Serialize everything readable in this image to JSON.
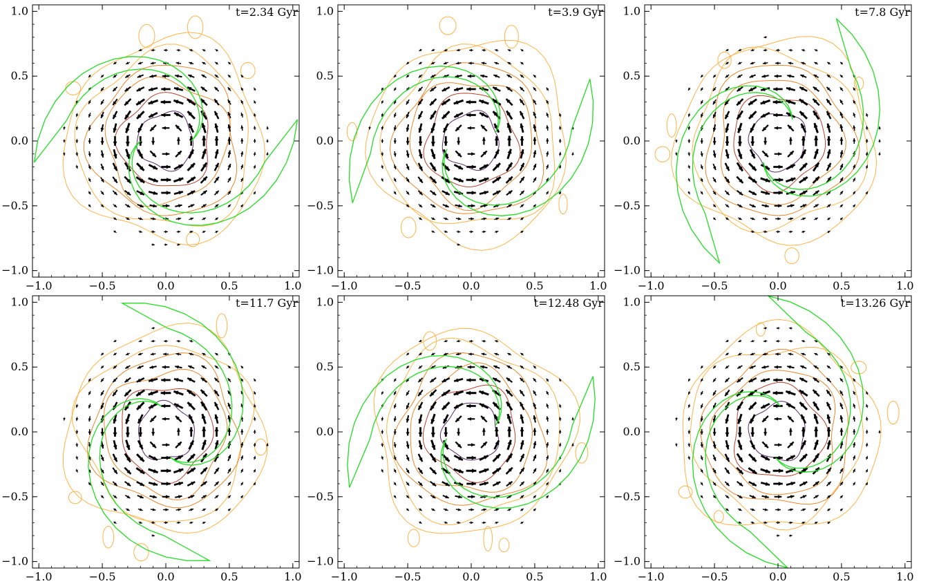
{
  "figure": {
    "panels": [
      {
        "time_label": "t=2.34 Gyr",
        "arm_rotation_deg": 0
      },
      {
        "time_label": "t=3.9 Gyr",
        "arm_rotation_deg": 18
      },
      {
        "time_label": "t=7.8 Gyr",
        "arm_rotation_deg": 55
      },
      {
        "time_label": "t=11.7 Gyr",
        "arm_rotation_deg": 100
      },
      {
        "time_label": "t=12.48 Gyr",
        "arm_rotation_deg": 15
      },
      {
        "time_label": "t=13.26 Gyr",
        "arm_rotation_deg": 85
      }
    ]
  },
  "chart_data": [
    {
      "type": "quiver",
      "title": "",
      "time_label": "t=2.34 Gyr",
      "xlim": [
        -1.05,
        1.05
      ],
      "ylim": [
        -1.05,
        1.05
      ],
      "xticks": [
        "-1.0",
        "-0.5",
        "0.0",
        "0.5",
        "1.0"
      ],
      "yticks": [
        "-1.0",
        "-0.5",
        "0.0",
        "0.5",
        "1.0"
      ]
    },
    {
      "type": "quiver",
      "title": "",
      "time_label": "t=3.9 Gyr",
      "xlim": [
        -1.05,
        1.05
      ],
      "ylim": [
        -1.05,
        1.05
      ],
      "xticks": [
        "-1.0",
        "-0.5",
        "0.0",
        "0.5",
        "1.0"
      ],
      "yticks": [
        "-1.0",
        "-0.5",
        "0.0",
        "0.5",
        "1.0"
      ]
    },
    {
      "type": "quiver",
      "title": "",
      "time_label": "t=7.8 Gyr",
      "xlim": [
        -1.05,
        1.05
      ],
      "ylim": [
        -1.05,
        1.05
      ],
      "xticks": [
        "-1.0",
        "-0.5",
        "0.0",
        "0.5",
        "1.0"
      ],
      "yticks": [
        "-1.0",
        "-0.5",
        "0.0",
        "0.5",
        "1.0"
      ]
    },
    {
      "type": "quiver",
      "title": "",
      "time_label": "t=11.7 Gyr",
      "xlim": [
        -1.05,
        1.05
      ],
      "ylim": [
        -1.05,
        1.05
      ],
      "xticks": [
        "-1.0",
        "-0.5",
        "0.0",
        "0.5",
        "1.0"
      ],
      "yticks": [
        "-1.0",
        "-0.5",
        "0.0",
        "0.5",
        "1.0"
      ]
    },
    {
      "type": "quiver",
      "title": "",
      "time_label": "t=12.48 Gyr",
      "xlim": [
        -1.05,
        1.05
      ],
      "ylim": [
        -1.05,
        1.05
      ],
      "xticks": [
        "-1.0",
        "-0.5",
        "0.0",
        "0.5",
        "1.0"
      ],
      "yticks": [
        "-1.0",
        "-0.5",
        "0.0",
        "0.5",
        "1.0"
      ]
    },
    {
      "type": "quiver",
      "title": "",
      "time_label": "t=13.26 Gyr",
      "xlim": [
        -1.05,
        1.05
      ],
      "ylim": [
        -1.05,
        1.05
      ],
      "xticks": [
        "-1.0",
        "-0.5",
        "0.0",
        "0.5",
        "1.0"
      ],
      "yticks": [
        "-1.0",
        "-0.5",
        "0.0",
        "0.5",
        "1.0"
      ]
    }
  ],
  "colors": {
    "arm_outline": "#22dd22",
    "arrows": "#000000",
    "contour_outer": "#ffb347",
    "contour_mid": "#e8862a",
    "contour_inner": "#b8402a",
    "contour_core": "#5a2a6a"
  }
}
